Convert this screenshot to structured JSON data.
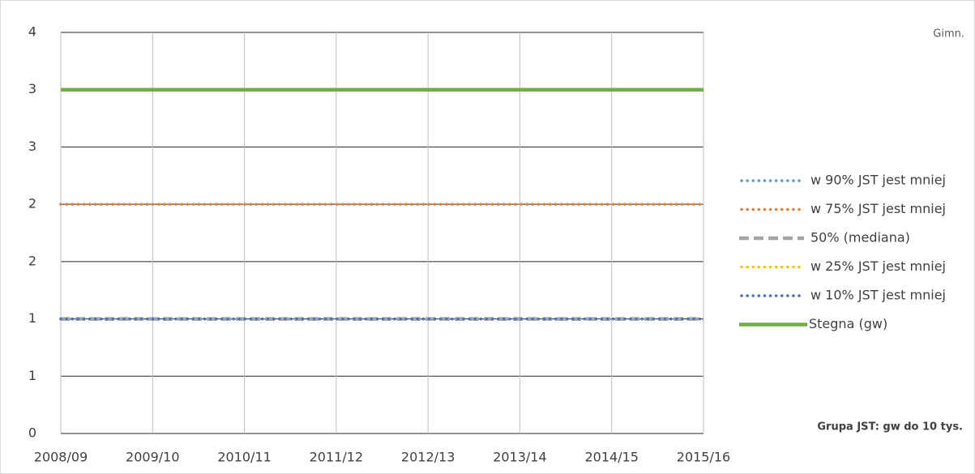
{
  "chart_data": {
    "type": "line",
    "note_top": "Gimn.",
    "note_bottom": "Grupa JST: gw do 10 tys.",
    "categories": [
      "2008/09",
      "2009/10",
      "2010/11",
      "2011/12",
      "2012/13",
      "2013/14",
      "2014/15",
      "2015/16"
    ],
    "ylim": [
      0,
      3.5
    ],
    "yticks": [
      0,
      {
        "value": 0.5,
        "label": "1"
      },
      1,
      {
        "value": 1.5,
        "label": "2"
      },
      2,
      {
        "value": 2.5,
        "label": "3"
      },
      3,
      {
        "value": 3.5,
        "label": "4"
      }
    ],
    "grid": true,
    "series": [
      {
        "name": "Stegna (gw)",
        "color": "#70ad47",
        "style": "solid",
        "values": [
          3,
          3,
          3,
          3,
          3,
          3,
          3,
          3
        ]
      },
      {
        "name": "w 90% JST jest mniej",
        "color": "#5b9bd5",
        "style": "dot",
        "values": [
          1,
          1,
          1,
          1,
          1,
          1,
          1,
          1
        ]
      },
      {
        "name": "w 75% JST jest mniej",
        "color": "#ed7d31",
        "style": "dot",
        "values": [
          2,
          2,
          2,
          2,
          2,
          2,
          2,
          2
        ]
      },
      {
        "name": "50% (mediana)",
        "color": "#a5a5a5",
        "style": "dash",
        "values": [
          1,
          1,
          1,
          1,
          1,
          1,
          1,
          1
        ]
      },
      {
        "name": "w 25% JST jest mniej",
        "color": "#ffc000",
        "style": "dot",
        "values": [
          1,
          1,
          1,
          1,
          1,
          1,
          1,
          1
        ]
      },
      {
        "name": "w 10% JST jest mniej",
        "color": "#4472c4",
        "style": "dot",
        "values": [
          1,
          1,
          1,
          1,
          1,
          1,
          1,
          1
        ]
      }
    ]
  }
}
